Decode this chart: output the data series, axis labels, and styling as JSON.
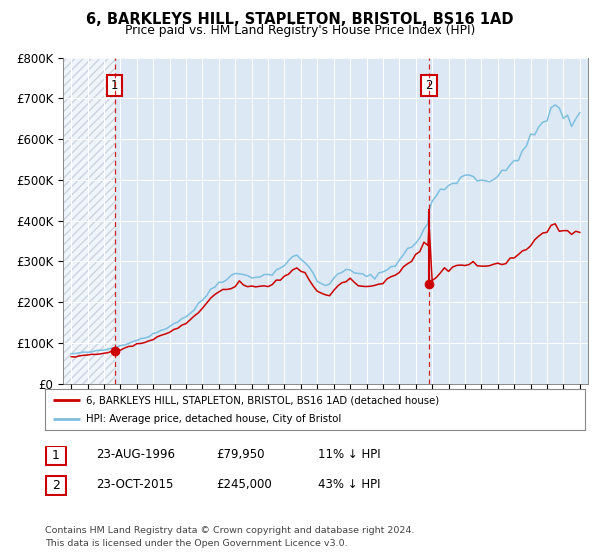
{
  "title": "6, BARKLEYS HILL, STAPLETON, BRISTOL, BS16 1AD",
  "subtitle": "Price paid vs. HM Land Registry's House Price Index (HPI)",
  "legend_property": "6, BARKLEYS HILL, STAPLETON, BRISTOL, BS16 1AD (detached house)",
  "legend_hpi": "HPI: Average price, detached house, City of Bristol",
  "transaction1_date_str": "23-AUG-1996",
  "transaction1_price_str": "£79,950",
  "transaction1_hpi_str": "11% ↓ HPI",
  "transaction1_year": 1996.64,
  "transaction1_value": 79950,
  "transaction2_date_str": "23-OCT-2015",
  "transaction2_price_str": "£245,000",
  "transaction2_hpi_str": "43% ↓ HPI",
  "transaction2_year": 2015.81,
  "transaction2_value": 245000,
  "footer_line1": "Contains HM Land Registry data © Crown copyright and database right 2024.",
  "footer_line2": "This data is licensed under the Open Government Licence v3.0.",
  "hpi_color": "#7fbfdf",
  "property_color": "#cc0000",
  "bg_color": "#dce9f5",
  "ytick_labels": [
    "£0",
    "£100K",
    "£200K",
    "£300K",
    "£400K",
    "£500K",
    "£600K",
    "£700K",
    "£800K"
  ],
  "ytick_values": [
    0,
    100000,
    200000,
    300000,
    400000,
    500000,
    600000,
    700000,
    800000
  ],
  "ylim": [
    0,
    800000
  ],
  "xmin": 1993.5,
  "xmax": 2025.5,
  "xtick_years": [
    1994,
    1995,
    1996,
    1997,
    1998,
    1999,
    2000,
    2001,
    2002,
    2003,
    2004,
    2005,
    2006,
    2007,
    2008,
    2009,
    2010,
    2011,
    2012,
    2013,
    2014,
    2015,
    2016,
    2017,
    2018,
    2019,
    2020,
    2021,
    2022,
    2023,
    2024,
    2025
  ]
}
